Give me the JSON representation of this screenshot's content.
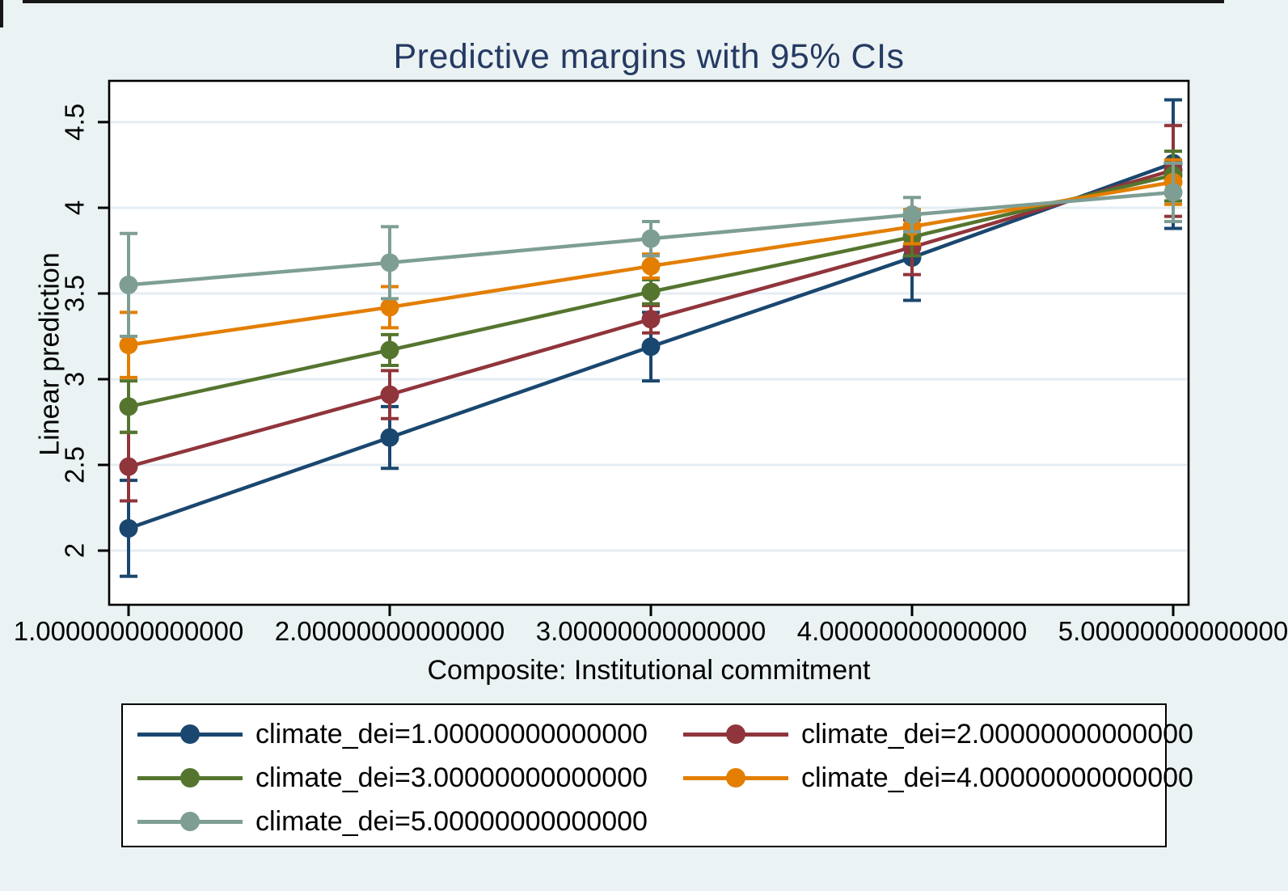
{
  "frame": {
    "background_color": "#eaf2f3",
    "plot_background_color": "#ffffff",
    "grid_color": "#e4edf3",
    "title_color": "#253a63"
  },
  "chart_data": {
    "type": "line",
    "title": "Predictive margins with 95% CIs",
    "xlabel": "Composite: Institutional commitment",
    "ylabel": "Linear prediction",
    "x": [
      1,
      2,
      3,
      4,
      5
    ],
    "x_tick_labels": [
      "1.00000000000000",
      "2.00000000000000",
      "3.00000000000000",
      "4.00000000000000",
      "5.00000000000000"
    ],
    "y_ticks": [
      2,
      2.5,
      3,
      3.5,
      4,
      4.5
    ],
    "y_tick_labels": [
      "2",
      "2.5",
      "3",
      "3.5",
      "4",
      "4.5"
    ],
    "xlim": [
      0.93,
      5.06
    ],
    "ylim": [
      1.68,
      4.74
    ],
    "grid": "horizontal",
    "legend_position": "bottom",
    "error_bars": "95% CI",
    "series": [
      {
        "name": "climate_dei=1.00000000000000",
        "color": "#1a476f",
        "values": [
          2.13,
          2.66,
          3.19,
          3.71,
          4.26
        ],
        "ci_low": [
          1.85,
          2.48,
          2.99,
          3.46,
          3.88
        ],
        "ci_high": [
          2.41,
          2.84,
          3.39,
          3.96,
          4.63
        ]
      },
      {
        "name": "climate_dei=2.00000000000000",
        "color": "#90353b",
        "values": [
          2.49,
          2.91,
          3.35,
          3.77,
          4.22
        ],
        "ci_low": [
          2.29,
          2.77,
          3.27,
          3.61,
          3.95
        ],
        "ci_high": [
          2.69,
          3.05,
          3.43,
          3.93,
          4.48
        ]
      },
      {
        "name": "climate_dei=3.00000000000000",
        "color": "#55752f",
        "values": [
          2.84,
          3.17,
          3.51,
          3.83,
          4.19
        ],
        "ci_low": [
          2.69,
          3.08,
          3.44,
          3.72,
          4.04
        ],
        "ci_high": [
          2.99,
          3.26,
          3.58,
          3.94,
          4.33
        ]
      },
      {
        "name": "climate_dei=4.00000000000000",
        "color": "#e37e00",
        "values": [
          3.2,
          3.42,
          3.66,
          3.89,
          4.15
        ],
        "ci_low": [
          3.01,
          3.3,
          3.59,
          3.79,
          4.02
        ],
        "ci_high": [
          3.39,
          3.54,
          3.73,
          3.99,
          4.28
        ]
      },
      {
        "name": "climate_dei=5.00000000000000",
        "color": "#7e9e94",
        "values": [
          3.55,
          3.68,
          3.82,
          3.96,
          4.09
        ],
        "ci_low": [
          3.25,
          3.47,
          3.72,
          3.86,
          3.92
        ],
        "ci_high": [
          3.85,
          3.89,
          3.92,
          4.06,
          4.26
        ]
      }
    ]
  }
}
